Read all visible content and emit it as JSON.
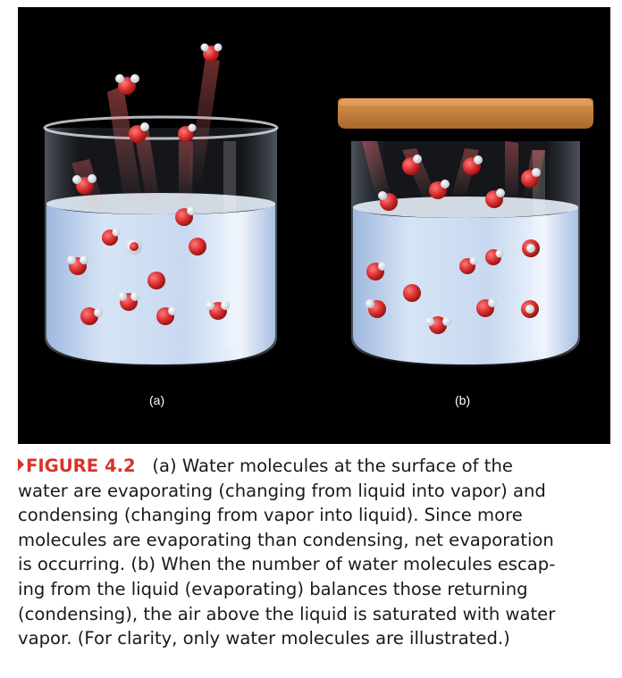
{
  "figure": {
    "panel_labels": [
      "(a)",
      "(b)"
    ],
    "colors": {
      "background": "#000000",
      "water": "#c9dbf2",
      "glass_rim": "#dfe6ef",
      "lid": "#c9823f",
      "oxygen": "#d42a2a",
      "hydrogen": "#f2f2f2"
    }
  },
  "caption": {
    "figure_id": "FIGURE 4.2",
    "lines": [
      "(a) Water molecules at the surface of the",
      "water are evaporating (changing from liquid into vapor) and",
      "condensing (changing from vapor into liquid). Since more",
      "molecules are evaporating than condensing, net evaporation",
      "is occurring. (b) When the number of water molecules escap-",
      "ing from the liquid (evaporating) balances those returning",
      "(condensing), the air above the liquid is saturated with water",
      "vapor. (For clarity, only water molecules are illustrated.)"
    ],
    "colors": {
      "figure_id": "#d8322a",
      "text": "#1a1a1a"
    }
  }
}
